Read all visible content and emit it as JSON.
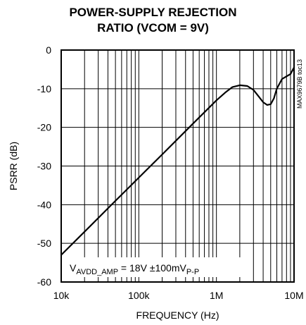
{
  "chart_data": {
    "type": "line",
    "title_line1": "POWER-SUPPLY REJECTION",
    "title_line2": "RATIO (VCOM = 9V)",
    "xlabel": "FREQUENCY (Hz)",
    "ylabel": "PSRR (dB)",
    "x_scale": "log",
    "xlim": [
      10000,
      10000000
    ],
    "ylim": [
      -60,
      0
    ],
    "x_ticks": [
      10000,
      100000,
      1000000,
      10000000
    ],
    "x_tick_labels": [
      "10k",
      "100k",
      "1M",
      "10M"
    ],
    "y_ticks": [
      0,
      -10,
      -20,
      -30,
      -40,
      -50,
      -60
    ],
    "y_tick_labels": [
      "0",
      "-10",
      "-20",
      "-30",
      "-40",
      "-50",
      "-60"
    ],
    "grid": true,
    "side_note": "MAX9679B toc13",
    "annotation": {
      "prefix": "V",
      "sub1": "AVDD_AMP",
      "middle": " = 18V ±100mV",
      "sub2": "P-P"
    },
    "series": [
      {
        "x": [
          10000,
          20000,
          50000,
          100000,
          200000,
          500000,
          1000000,
          1300000,
          1600000,
          2000000,
          2500000,
          3000000,
          3500000,
          4000000,
          4500000,
          5000000,
          5500000,
          6000000,
          7000000,
          8000000,
          9000000,
          10000000
        ],
        "y": [
          -53,
          -47,
          -39,
          -33,
          -27,
          -19,
          -13,
          -11,
          -9.6,
          -9.1,
          -9.3,
          -10.3,
          -12,
          -13.5,
          -14.2,
          -14,
          -12.5,
          -10,
          -7.5,
          -6.8,
          -6.2,
          -4.5
        ]
      }
    ]
  }
}
